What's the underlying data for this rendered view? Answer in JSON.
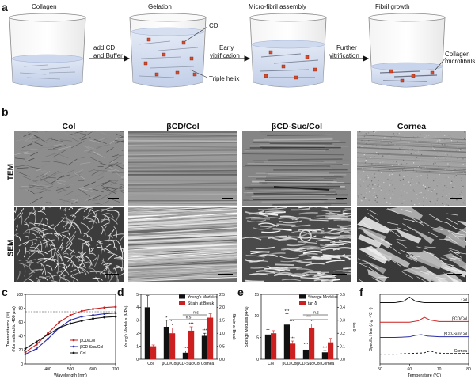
{
  "figure": {
    "panel_labels": {
      "a": "a",
      "b": "b",
      "c": "c",
      "d": "d",
      "e": "e",
      "f": "f"
    },
    "a": {
      "stage_labels": [
        "Collagen",
        "Gelation",
        "Micro-fibril assembly",
        "Fibril growth"
      ],
      "arrow_labels": [
        [
          "add CD",
          "and Buffer"
        ],
        [
          "Early",
          "vitrification"
        ],
        [
          "Further",
          "vitrification"
        ]
      ],
      "annotations": {
        "cd": "CD",
        "triple_helix": "Triple helix",
        "microfibrils": [
          "Collagen",
          "microfibrils"
        ]
      }
    },
    "b": {
      "columns": [
        "Col",
        "βCD/Col",
        "βCD-Suc/Col",
        "Cornea"
      ],
      "rows": [
        "TEM",
        "SEM"
      ]
    }
  },
  "chart_data": [
    {
      "panel": "c",
      "type": "line",
      "xlabel": "Wavelength (nm)",
      "ylabel": [
        "Transmittance (%)",
        "(Normalized to 400 μm)"
      ],
      "xlim": [
        300,
        700
      ],
      "ylim": [
        0,
        100
      ],
      "xticks": [
        400,
        500,
        600,
        700
      ],
      "yticks": [
        0,
        20,
        40,
        60,
        80,
        100
      ],
      "x": [
        300,
        350,
        400,
        450,
        500,
        550,
        600,
        650,
        700
      ],
      "reference_line": 75,
      "legend_position": "bottom-right",
      "series": [
        {
          "name": "βCD/Col",
          "color": "#cc1f1f",
          "values": [
            17,
            28,
            44,
            60,
            70,
            76,
            79,
            81,
            82
          ]
        },
        {
          "name": "βCD-Suc/Col",
          "color": "#2b2fa8",
          "values": [
            14,
            22,
            36,
            52,
            63,
            68,
            70,
            72,
            73
          ]
        },
        {
          "name": "Col",
          "color": "#111111",
          "values": [
            22,
            32,
            42,
            52,
            58,
            62,
            65,
            67,
            68
          ]
        }
      ]
    },
    {
      "panel": "d",
      "type": "bar",
      "categories": [
        "Col",
        "βCD/Col",
        "βCD-Suc/Col",
        "Cornea"
      ],
      "ylabel": "Young's Modulus (MPa)",
      "y2label": "Strain at Break",
      "ylim": [
        0,
        5
      ],
      "yticks": [
        0,
        1,
        2,
        3,
        4,
        5
      ],
      "y2lim": [
        0,
        2.5
      ],
      "y2ticks": [
        0.0,
        0.5,
        1.0,
        1.5,
        2.0,
        2.5
      ],
      "legend_position": "top-right",
      "significance_marks": [
        "*",
        "***",
        "*",
        "***",
        "***",
        "n.s",
        "n.s",
        "*"
      ],
      "series": [
        {
          "name": "Young's Modulus",
          "color": "#111111",
          "axis": "left",
          "values": [
            4.0,
            2.5,
            0.5,
            1.8
          ],
          "errors": [
            0.9,
            0.5,
            0.15,
            0.2
          ]
        },
        {
          "name": "Strain at Break",
          "color": "#cc1f1f",
          "axis": "right",
          "values": [
            0.5,
            1.0,
            1.1,
            1.6
          ],
          "errors": [
            0.05,
            0.2,
            0.15,
            0.15
          ]
        }
      ]
    },
    {
      "panel": "e",
      "type": "bar",
      "categories": [
        "Col",
        "βCD/Col",
        "βCD-Suc/Col",
        "Cornea"
      ],
      "ylabel": "Storage Modulus (kPa)",
      "y2label": "tan δ",
      "ylim": [
        0,
        15
      ],
      "yticks": [
        0,
        5,
        10,
        15
      ],
      "y2lim": [
        0,
        0.5
      ],
      "y2ticks": [
        0.0,
        0.1,
        0.2,
        0.3,
        0.4,
        0.5
      ],
      "legend_position": "top-right",
      "significance_marks": [
        "***",
        "***",
        "***",
        "***",
        "***",
        "***",
        "n.s",
        "***"
      ],
      "series": [
        {
          "name": "Storage Modulus",
          "color": "#111111",
          "axis": "left",
          "values": [
            5.7,
            8.0,
            2.2,
            1.6
          ],
          "errors": [
            1.2,
            2.5,
            0.6,
            0.4
          ]
        },
        {
          "name": "tan δ",
          "color": "#cc1f1f",
          "axis": "right",
          "values": [
            0.2,
            0.12,
            0.24,
            0.13
          ],
          "errors": [
            0.02,
            0.02,
            0.03,
            0.03
          ]
        }
      ]
    },
    {
      "panel": "f",
      "type": "line",
      "xlabel": "Temperature (°C)",
      "ylabel": "Specific Heat (J.g⁻¹°C⁻¹)",
      "xlim": [
        50,
        80
      ],
      "xticks": [
        50,
        60,
        70,
        80
      ],
      "legend_position": "right",
      "series": [
        {
          "name": "Col",
          "color": "#111111",
          "x": [
            50,
            55,
            58,
            60,
            62,
            65,
            70,
            75,
            80
          ],
          "values": [
            0.88,
            0.88,
            0.9,
            0.96,
            0.9,
            0.88,
            0.88,
            0.88,
            0.88
          ]
        },
        {
          "name": "βCD/Col",
          "color": "#cc1f1f",
          "x": [
            50,
            55,
            60,
            63,
            65,
            67,
            70,
            75,
            80
          ],
          "values": [
            0.6,
            0.6,
            0.6,
            0.62,
            0.67,
            0.63,
            0.61,
            0.61,
            0.61
          ]
        },
        {
          "name": "βCD-Suc/Col",
          "color": "#2b2fa8",
          "x": [
            50,
            55,
            60,
            62,
            64,
            66,
            70,
            75,
            80
          ],
          "values": [
            0.38,
            0.38,
            0.39,
            0.41,
            0.42,
            0.4,
            0.39,
            0.39,
            0.39
          ]
        },
        {
          "name": "Cornea",
          "color": "#111111",
          "dashed": true,
          "x": [
            50,
            55,
            60,
            65,
            67,
            69,
            72,
            75,
            80
          ],
          "values": [
            0.14,
            0.14,
            0.15,
            0.16,
            0.19,
            0.16,
            0.15,
            0.15,
            0.15
          ]
        }
      ]
    }
  ]
}
